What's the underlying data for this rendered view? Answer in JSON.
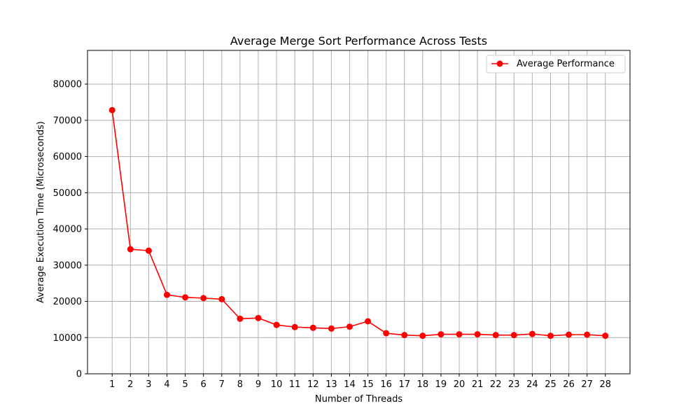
{
  "chart_data": {
    "type": "line",
    "title": "Average Merge Sort Performance Across Tests",
    "xlabel": "Number of Threads",
    "ylabel": "Average Execution Time (Microseconds)",
    "x": [
      1,
      2,
      3,
      4,
      5,
      6,
      7,
      8,
      9,
      10,
      11,
      12,
      13,
      14,
      15,
      16,
      17,
      18,
      19,
      20,
      21,
      22,
      23,
      24,
      25,
      26,
      27,
      28
    ],
    "series": [
      {
        "name": "Average Performance",
        "color": "#ff0000",
        "values": [
          72800,
          34400,
          34000,
          21800,
          21100,
          20900,
          20600,
          15200,
          15400,
          13500,
          12900,
          12700,
          12500,
          13000,
          14500,
          11200,
          10700,
          10500,
          10900,
          10900,
          10900,
          10700,
          10700,
          11000,
          10500,
          10800,
          10800,
          10500
        ]
      }
    ],
    "xticks": [
      "1",
      "2",
      "3",
      "4",
      "5",
      "6",
      "7",
      "8",
      "9",
      "10",
      "11",
      "12",
      "13",
      "14",
      "15",
      "16",
      "17",
      "18",
      "19",
      "20",
      "21",
      "22",
      "23",
      "24",
      "25",
      "26",
      "27",
      "28"
    ],
    "yticks": [
      "0",
      "10000",
      "20000",
      "30000",
      "40000",
      "50000",
      "60000",
      "70000",
      "80000"
    ],
    "ytick_values": [
      0,
      10000,
      20000,
      30000,
      40000,
      50000,
      60000,
      70000,
      80000
    ],
    "xlim": [
      -0.35,
      29.35
    ],
    "ylim": [
      0,
      89300
    ],
    "grid": true,
    "legend_position": "top-right"
  }
}
